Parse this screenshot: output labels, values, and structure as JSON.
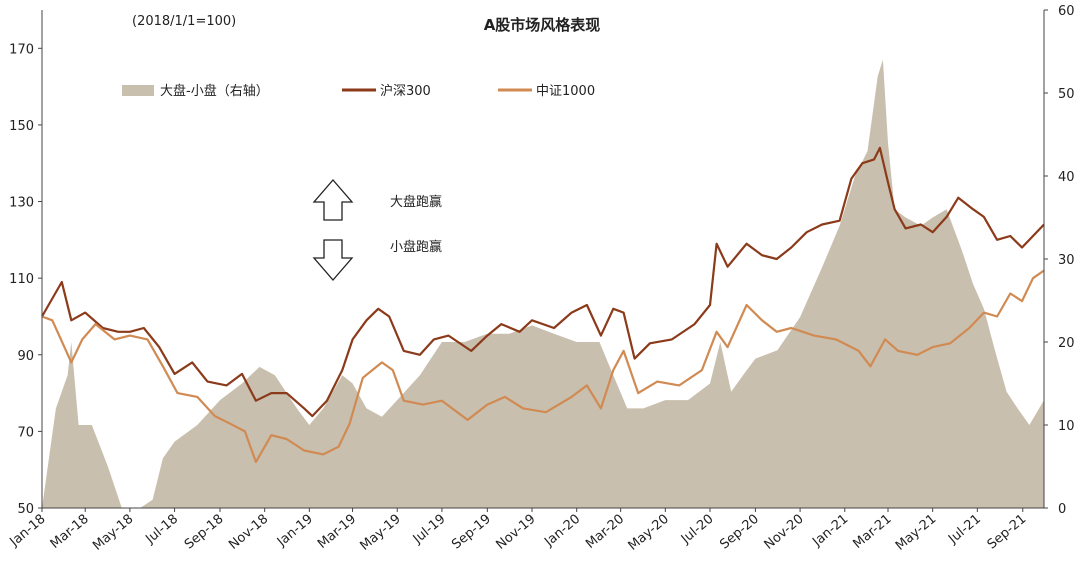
{
  "chart_data": {
    "type": "line",
    "title": "A股市场风格表现",
    "subtitle": "(2018/1/1=100)",
    "xlabel": "",
    "ylabel": "",
    "x_range": [
      "2018-01-01",
      "2021-09-30"
    ],
    "x_ticks": [
      "Jan-18",
      "Mar-18",
      "May-18",
      "Jul-18",
      "Sep-18",
      "Nov-18",
      "Jan-19",
      "Mar-19",
      "May-19",
      "Jul-19",
      "Sep-19",
      "Nov-19",
      "Jan-20",
      "Mar-20",
      "May-20",
      "Jul-20",
      "Sep-20",
      "Nov-20",
      "Jan-21",
      "Mar-21",
      "May-21",
      "Jul-21",
      "Sep-21"
    ],
    "x_tick_dates": [
      "2018-01-01",
      "2018-03-01",
      "2018-05-01",
      "2018-07-01",
      "2018-09-01",
      "2018-11-01",
      "2019-01-01",
      "2019-03-01",
      "2019-05-01",
      "2019-07-01",
      "2019-09-01",
      "2019-11-01",
      "2020-01-01",
      "2020-03-01",
      "2020-05-01",
      "2020-07-01",
      "2020-09-01",
      "2020-11-01",
      "2021-01-01",
      "2021-03-01",
      "2021-05-01",
      "2021-07-01",
      "2021-09-01"
    ],
    "ylim_left": [
      50,
      180
    ],
    "yticks_left": [
      50,
      70,
      90,
      110,
      130,
      150,
      170
    ],
    "ylim_right": [
      0,
      60
    ],
    "yticks_right": [
      0,
      10,
      20,
      30,
      40,
      50,
      60
    ],
    "grid": false,
    "legend": "top-left",
    "series": [
      {
        "name": "大盘-小盘（右轴）",
        "type": "area",
        "axis": "right",
        "color": "#c9bfae",
        "points": [
          [
            "2018-01-01",
            0
          ],
          [
            "2018-01-20",
            12
          ],
          [
            "2018-02-05",
            16
          ],
          [
            "2018-02-10",
            20
          ],
          [
            "2018-02-20",
            10
          ],
          [
            "2018-03-10",
            10
          ],
          [
            "2018-04-01",
            5
          ],
          [
            "2018-04-20",
            0
          ],
          [
            "2018-05-15",
            0
          ],
          [
            "2018-06-01",
            1
          ],
          [
            "2018-06-15",
            6
          ],
          [
            "2018-07-01",
            8
          ],
          [
            "2018-08-01",
            10
          ],
          [
            "2018-09-01",
            13
          ],
          [
            "2018-10-01",
            15
          ],
          [
            "2018-10-25",
            17
          ],
          [
            "2018-11-15",
            16
          ],
          [
            "2018-12-15",
            12
          ],
          [
            "2019-01-01",
            10
          ],
          [
            "2019-01-20",
            12
          ],
          [
            "2019-02-15",
            16
          ],
          [
            "2019-03-01",
            15
          ],
          [
            "2019-03-20",
            12
          ],
          [
            "2019-04-10",
            11
          ],
          [
            "2019-05-01",
            13
          ],
          [
            "2019-06-01",
            16
          ],
          [
            "2019-07-01",
            20
          ],
          [
            "2019-08-01",
            20
          ],
          [
            "2019-09-01",
            21
          ],
          [
            "2019-10-01",
            21
          ],
          [
            "2019-11-01",
            22
          ],
          [
            "2019-12-01",
            21
          ],
          [
            "2020-01-01",
            20
          ],
          [
            "2020-02-01",
            20
          ],
          [
            "2020-02-20",
            16
          ],
          [
            "2020-03-10",
            12
          ],
          [
            "2020-04-01",
            12
          ],
          [
            "2020-05-01",
            13
          ],
          [
            "2020-06-01",
            13
          ],
          [
            "2020-07-01",
            15
          ],
          [
            "2020-07-15",
            20
          ],
          [
            "2020-07-30",
            14
          ],
          [
            "2020-08-15",
            16
          ],
          [
            "2020-09-01",
            18
          ],
          [
            "2020-10-01",
            19
          ],
          [
            "2020-11-01",
            23
          ],
          [
            "2020-12-01",
            29
          ],
          [
            "2020-12-25",
            34
          ],
          [
            "2021-01-15",
            40
          ],
          [
            "2021-02-01",
            43
          ],
          [
            "2021-02-15",
            52
          ],
          [
            "2021-02-22",
            54
          ],
          [
            "2021-03-01",
            44
          ],
          [
            "2021-03-10",
            36
          ],
          [
            "2021-03-25",
            35
          ],
          [
            "2021-04-15",
            34
          ],
          [
            "2021-05-01",
            35
          ],
          [
            "2021-05-20",
            36
          ],
          [
            "2021-06-10",
            31
          ],
          [
            "2021-06-25",
            27
          ],
          [
            "2021-07-10",
            24
          ],
          [
            "2021-07-25",
            19
          ],
          [
            "2021-08-10",
            14
          ],
          [
            "2021-08-25",
            12
          ],
          [
            "2021-09-10",
            10
          ],
          [
            "2021-09-30",
            13
          ]
        ]
      },
      {
        "name": "沪深300",
        "type": "line",
        "axis": "left",
        "color": "#8b3a1a",
        "points": [
          [
            "2018-01-01",
            100
          ],
          [
            "2018-01-28",
            109
          ],
          [
            "2018-02-10",
            99
          ],
          [
            "2018-03-01",
            101
          ],
          [
            "2018-03-25",
            97
          ],
          [
            "2018-04-15",
            96
          ],
          [
            "2018-05-01",
            96
          ],
          [
            "2018-05-20",
            97
          ],
          [
            "2018-06-10",
            92
          ],
          [
            "2018-07-01",
            85
          ],
          [
            "2018-07-25",
            88
          ],
          [
            "2018-08-15",
            83
          ],
          [
            "2018-09-10",
            82
          ],
          [
            "2018-10-01",
            85
          ],
          [
            "2018-10-20",
            78
          ],
          [
            "2018-11-10",
            80
          ],
          [
            "2018-12-01",
            80
          ],
          [
            "2018-12-25",
            76
          ],
          [
            "2019-01-05",
            74
          ],
          [
            "2019-01-25",
            78
          ],
          [
            "2019-02-15",
            86
          ],
          [
            "2019-03-01",
            94
          ],
          [
            "2019-03-20",
            99
          ],
          [
            "2019-04-05",
            102
          ],
          [
            "2019-04-20",
            100
          ],
          [
            "2019-05-10",
            91
          ],
          [
            "2019-06-01",
            90
          ],
          [
            "2019-06-20",
            94
          ],
          [
            "2019-07-10",
            95
          ],
          [
            "2019-08-10",
            91
          ],
          [
            "2019-09-01",
            95
          ],
          [
            "2019-09-20",
            98
          ],
          [
            "2019-10-15",
            96
          ],
          [
            "2019-11-01",
            99
          ],
          [
            "2019-12-01",
            97
          ],
          [
            "2019-12-25",
            101
          ],
          [
            "2020-01-15",
            103
          ],
          [
            "2020-02-03",
            95
          ],
          [
            "2020-02-20",
            102
          ],
          [
            "2020-03-05",
            101
          ],
          [
            "2020-03-20",
            89
          ],
          [
            "2020-04-10",
            93
          ],
          [
            "2020-05-10",
            94
          ],
          [
            "2020-06-10",
            98
          ],
          [
            "2020-07-01",
            103
          ],
          [
            "2020-07-10",
            119
          ],
          [
            "2020-07-25",
            113
          ],
          [
            "2020-08-20",
            119
          ],
          [
            "2020-09-10",
            116
          ],
          [
            "2020-09-30",
            115
          ],
          [
            "2020-10-20",
            118
          ],
          [
            "2020-11-10",
            122
          ],
          [
            "2020-12-01",
            124
          ],
          [
            "2020-12-25",
            125
          ],
          [
            "2021-01-10",
            136
          ],
          [
            "2021-01-25",
            140
          ],
          [
            "2021-02-10",
            141
          ],
          [
            "2021-02-18",
            144
          ],
          [
            "2021-03-01",
            135
          ],
          [
            "2021-03-10",
            128
          ],
          [
            "2021-03-25",
            123
          ],
          [
            "2021-04-15",
            124
          ],
          [
            "2021-05-01",
            122
          ],
          [
            "2021-05-20",
            126
          ],
          [
            "2021-06-05",
            131
          ],
          [
            "2021-06-25",
            128
          ],
          [
            "2021-07-10",
            126
          ],
          [
            "2021-07-28",
            120
          ],
          [
            "2021-08-15",
            121
          ],
          [
            "2021-08-31",
            118
          ],
          [
            "2021-09-15",
            121
          ],
          [
            "2021-09-30",
            124
          ]
        ]
      },
      {
        "name": "中证1000",
        "type": "line",
        "axis": "left",
        "color": "#d08a52",
        "points": [
          [
            "2018-01-01",
            100
          ],
          [
            "2018-01-15",
            99
          ],
          [
            "2018-02-10",
            88
          ],
          [
            "2018-02-25",
            94
          ],
          [
            "2018-03-15",
            98
          ],
          [
            "2018-04-10",
            94
          ],
          [
            "2018-05-01",
            95
          ],
          [
            "2018-05-25",
            94
          ],
          [
            "2018-06-15",
            87
          ],
          [
            "2018-07-05",
            80
          ],
          [
            "2018-08-01",
            79
          ],
          [
            "2018-08-25",
            74
          ],
          [
            "2018-09-15",
            72
          ],
          [
            "2018-10-05",
            70
          ],
          [
            "2018-10-20",
            62
          ],
          [
            "2018-11-10",
            69
          ],
          [
            "2018-12-01",
            68
          ],
          [
            "2018-12-25",
            65
          ],
          [
            "2019-01-20",
            64
          ],
          [
            "2019-02-10",
            66
          ],
          [
            "2019-02-25",
            72
          ],
          [
            "2019-03-15",
            84
          ],
          [
            "2019-04-10",
            88
          ],
          [
            "2019-04-25",
            86
          ],
          [
            "2019-05-10",
            78
          ],
          [
            "2019-06-05",
            77
          ],
          [
            "2019-07-01",
            78
          ],
          [
            "2019-08-05",
            73
          ],
          [
            "2019-09-01",
            77
          ],
          [
            "2019-09-25",
            79
          ],
          [
            "2019-10-20",
            76
          ],
          [
            "2019-11-20",
            75
          ],
          [
            "2019-12-25",
            79
          ],
          [
            "2020-01-15",
            82
          ],
          [
            "2020-02-03",
            76
          ],
          [
            "2020-02-20",
            86
          ],
          [
            "2020-03-05",
            91
          ],
          [
            "2020-03-25",
            80
          ],
          [
            "2020-04-20",
            83
          ],
          [
            "2020-05-20",
            82
          ],
          [
            "2020-06-20",
            86
          ],
          [
            "2020-07-10",
            96
          ],
          [
            "2020-07-25",
            92
          ],
          [
            "2020-08-20",
            103
          ],
          [
            "2020-09-10",
            99
          ],
          [
            "2020-09-30",
            96
          ],
          [
            "2020-10-20",
            97
          ],
          [
            "2020-11-20",
            95
          ],
          [
            "2020-12-20",
            94
          ],
          [
            "2021-01-20",
            91
          ],
          [
            "2021-02-05",
            87
          ],
          [
            "2021-02-25",
            94
          ],
          [
            "2021-03-15",
            91
          ],
          [
            "2021-04-10",
            90
          ],
          [
            "2021-05-01",
            92
          ],
          [
            "2021-05-25",
            93
          ],
          [
            "2021-06-20",
            97
          ],
          [
            "2021-07-10",
            101
          ],
          [
            "2021-07-28",
            100
          ],
          [
            "2021-08-15",
            106
          ],
          [
            "2021-08-31",
            104
          ],
          [
            "2021-09-15",
            110
          ],
          [
            "2021-09-30",
            112
          ]
        ]
      }
    ],
    "annotations": [
      {
        "text": "大盘跑赢",
        "symbol": "up-arrow-icon"
      },
      {
        "text": "小盘跑赢",
        "symbol": "down-arrow-icon"
      }
    ]
  }
}
